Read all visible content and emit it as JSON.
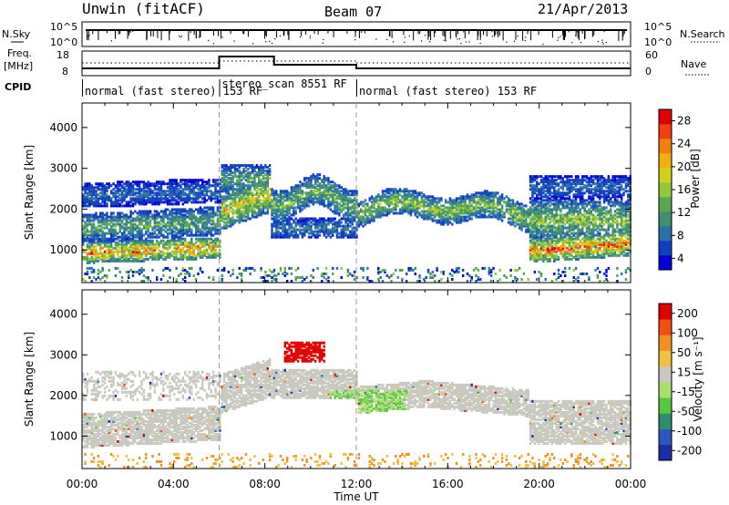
{
  "header": {
    "station": "Unwin (fitACF)",
    "beam": "Beam 07",
    "date": "21/Apr/2013"
  },
  "top_panels": {
    "nsky_label": "N.Sky",
    "nsky_ticks": [
      "10^5",
      "10^0"
    ],
    "nsearch_label": "N.Search",
    "nsearch_ticks": [
      "10^5",
      "10^0"
    ],
    "freq_label": "Freq.",
    "freq_unit": "[MHz]",
    "freq_ticks": [
      "18",
      "8"
    ],
    "nave_label": "Nave",
    "nave_ticks": [
      "60",
      "0"
    ],
    "cpid_label": "CPID",
    "cpid_segments": [
      {
        "label": "normal (fast stereo) 153 RF",
        "start_h": 0,
        "end_h": 6
      },
      {
        "label": "stereo_scan 8551 RF",
        "start_h": 6,
        "end_h": 12
      },
      {
        "label": "normal (fast stereo) 153 RF",
        "start_h": 12,
        "end_h": 24
      }
    ]
  },
  "chart_data": [
    {
      "type": "heatmap",
      "title": "",
      "ylabel": "Slant Range [km]",
      "xlabel": "",
      "x_range_h": [
        0,
        24
      ],
      "ylim": [
        200,
        4600
      ],
      "yticks": [
        1000,
        2000,
        3000,
        4000
      ],
      "colorbar": {
        "label": "Power [dB]",
        "ticks": [
          "28",
          "24",
          "20",
          "16",
          "12",
          "8",
          "4"
        ],
        "colors": [
          "#0000d8",
          "#1040c0",
          "#2a70a8",
          "#3f8f70",
          "#58a850",
          "#90c838",
          "#d0d020",
          "#f0b010",
          "#f08010",
          "#f04010",
          "#e00000"
        ]
      }
    },
    {
      "type": "heatmap",
      "title": "",
      "ylabel": "Slant Range [km]",
      "xlabel": "Time UT",
      "x_range_h": [
        0,
        24
      ],
      "xticks": [
        "00:00",
        "04:00",
        "08:00",
        "12:00",
        "16:00",
        "20:00",
        "00:00"
      ],
      "ylim": [
        200,
        4600
      ],
      "yticks": [
        1000,
        2000,
        3000,
        4000
      ],
      "colorbar": {
        "label": "Velocity [m s⁻¹]",
        "ticks": [
          "200",
          "100",
          "50",
          "15",
          "-15",
          "-50",
          "-100",
          "-200"
        ],
        "colors": [
          "#1a2ea8",
          "#2a58c0",
          "#2f8a70",
          "#58c840",
          "#a8e070",
          "#c8c8c0",
          "#f0c040",
          "#f09020",
          "#f05010",
          "#e00000"
        ]
      }
    }
  ]
}
